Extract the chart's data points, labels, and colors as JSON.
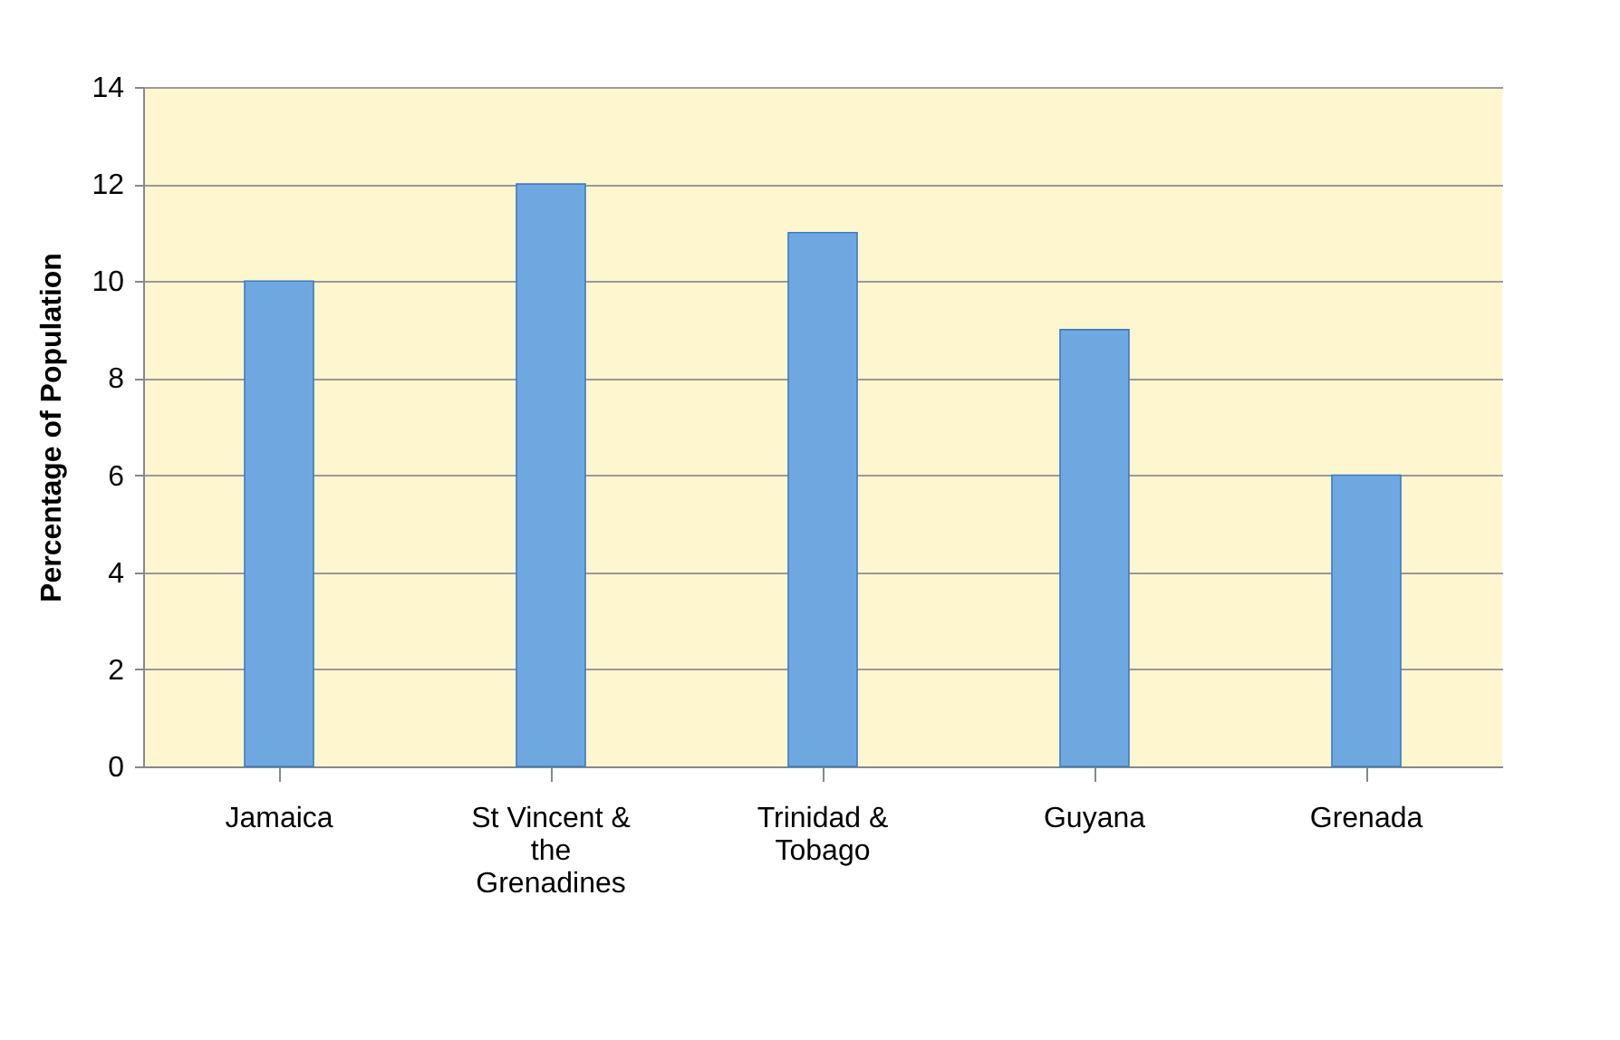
{
  "chart_data": {
    "type": "bar",
    "ylabel": "Percentage of Population",
    "categories": [
      "Jamaica",
      "St Vincent & the Grenadines",
      "Trinidad & Tobago",
      "Guyana",
      "Grenada"
    ],
    "values": [
      10,
      12,
      11,
      9,
      6
    ],
    "color": "#6fa8e0",
    "ylim": [
      0,
      14
    ],
    "yticks": [
      0,
      2,
      4,
      6,
      8,
      10,
      12,
      14
    ],
    "grid": "y"
  }
}
